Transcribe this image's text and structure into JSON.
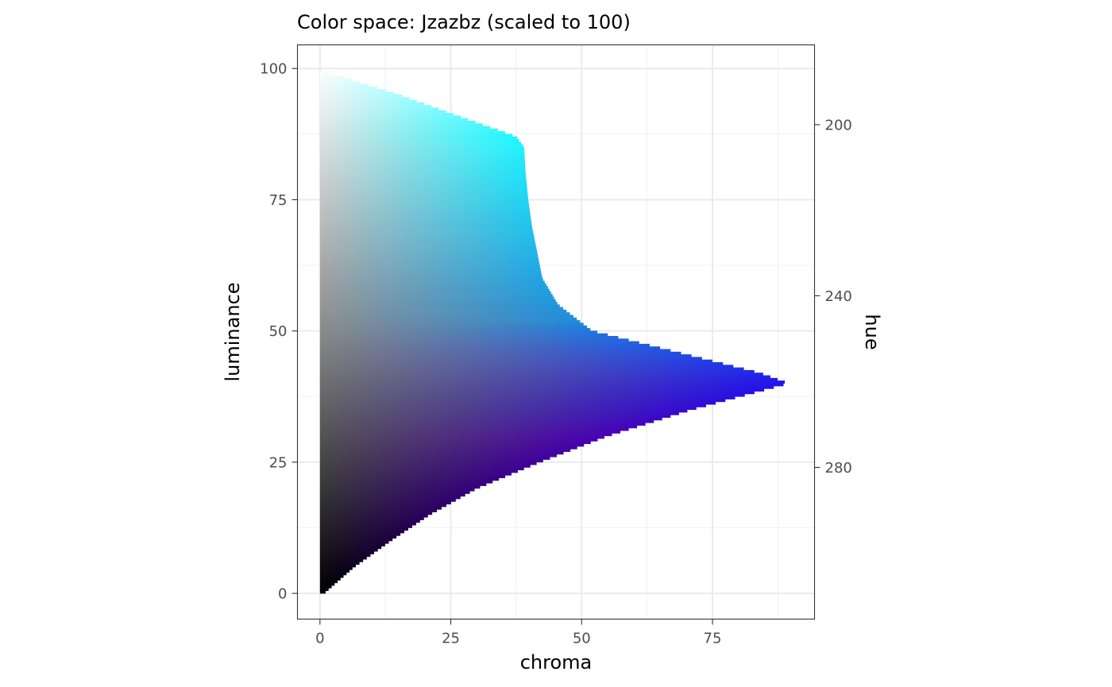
{
  "chart_data": {
    "type": "area",
    "title": "Color space: Jzazbz (scaled to 100)",
    "xlabel": "chroma",
    "ylabel": "luminance",
    "y2label": "hue",
    "xlim": [
      -4.3,
      94.5
    ],
    "ylim": [
      -4.9,
      104.5
    ],
    "xticks": [
      0,
      25,
      50,
      75
    ],
    "xtick_labels": [
      "0",
      "25",
      "50",
      "75"
    ],
    "yticks": [
      0,
      25,
      50,
      75,
      100
    ],
    "ytick_labels": [
      "0",
      "25",
      "50",
      "75",
      "100"
    ],
    "y2ticks": [
      200,
      240,
      280
    ],
    "y2tick_labels": [
      "200",
      "240",
      "280"
    ],
    "y2_note": "secondary hue axis; hue 200 at luminance ~89.3, 240 at ~56.7, 280 at ~24.0",
    "y2_map": {
      "hue": [
        200,
        240,
        280
      ],
      "luminance": [
        89.3,
        56.7,
        24.0
      ]
    },
    "grid": true,
    "legend": "none",
    "boundary": {
      "luminance": [
        0,
        5,
        10,
        15,
        20,
        25,
        30,
        35,
        40,
        42,
        45,
        50,
        55,
        60,
        65,
        70,
        75,
        80,
        85,
        87,
        90,
        95,
        99
      ],
      "max_chroma": [
        0.8,
        6.5,
        13.5,
        21,
        30,
        42,
        55,
        71,
        89.5,
        84,
        72,
        52,
        45.5,
        42.5,
        41.5,
        40.5,
        39.8,
        39.3,
        39,
        37.5,
        29,
        15,
        2
      ]
    },
    "colors": {
      "white": "#ffffff",
      "gray_mid": "#8a8a8a",
      "black": "#000000",
      "cyan": "#1ef8ff",
      "blue_mid": "#1f8cdb",
      "blue_peak": "#2012ef",
      "indigo": "#4a00b6",
      "indigo_dark": "#2a0060"
    }
  }
}
